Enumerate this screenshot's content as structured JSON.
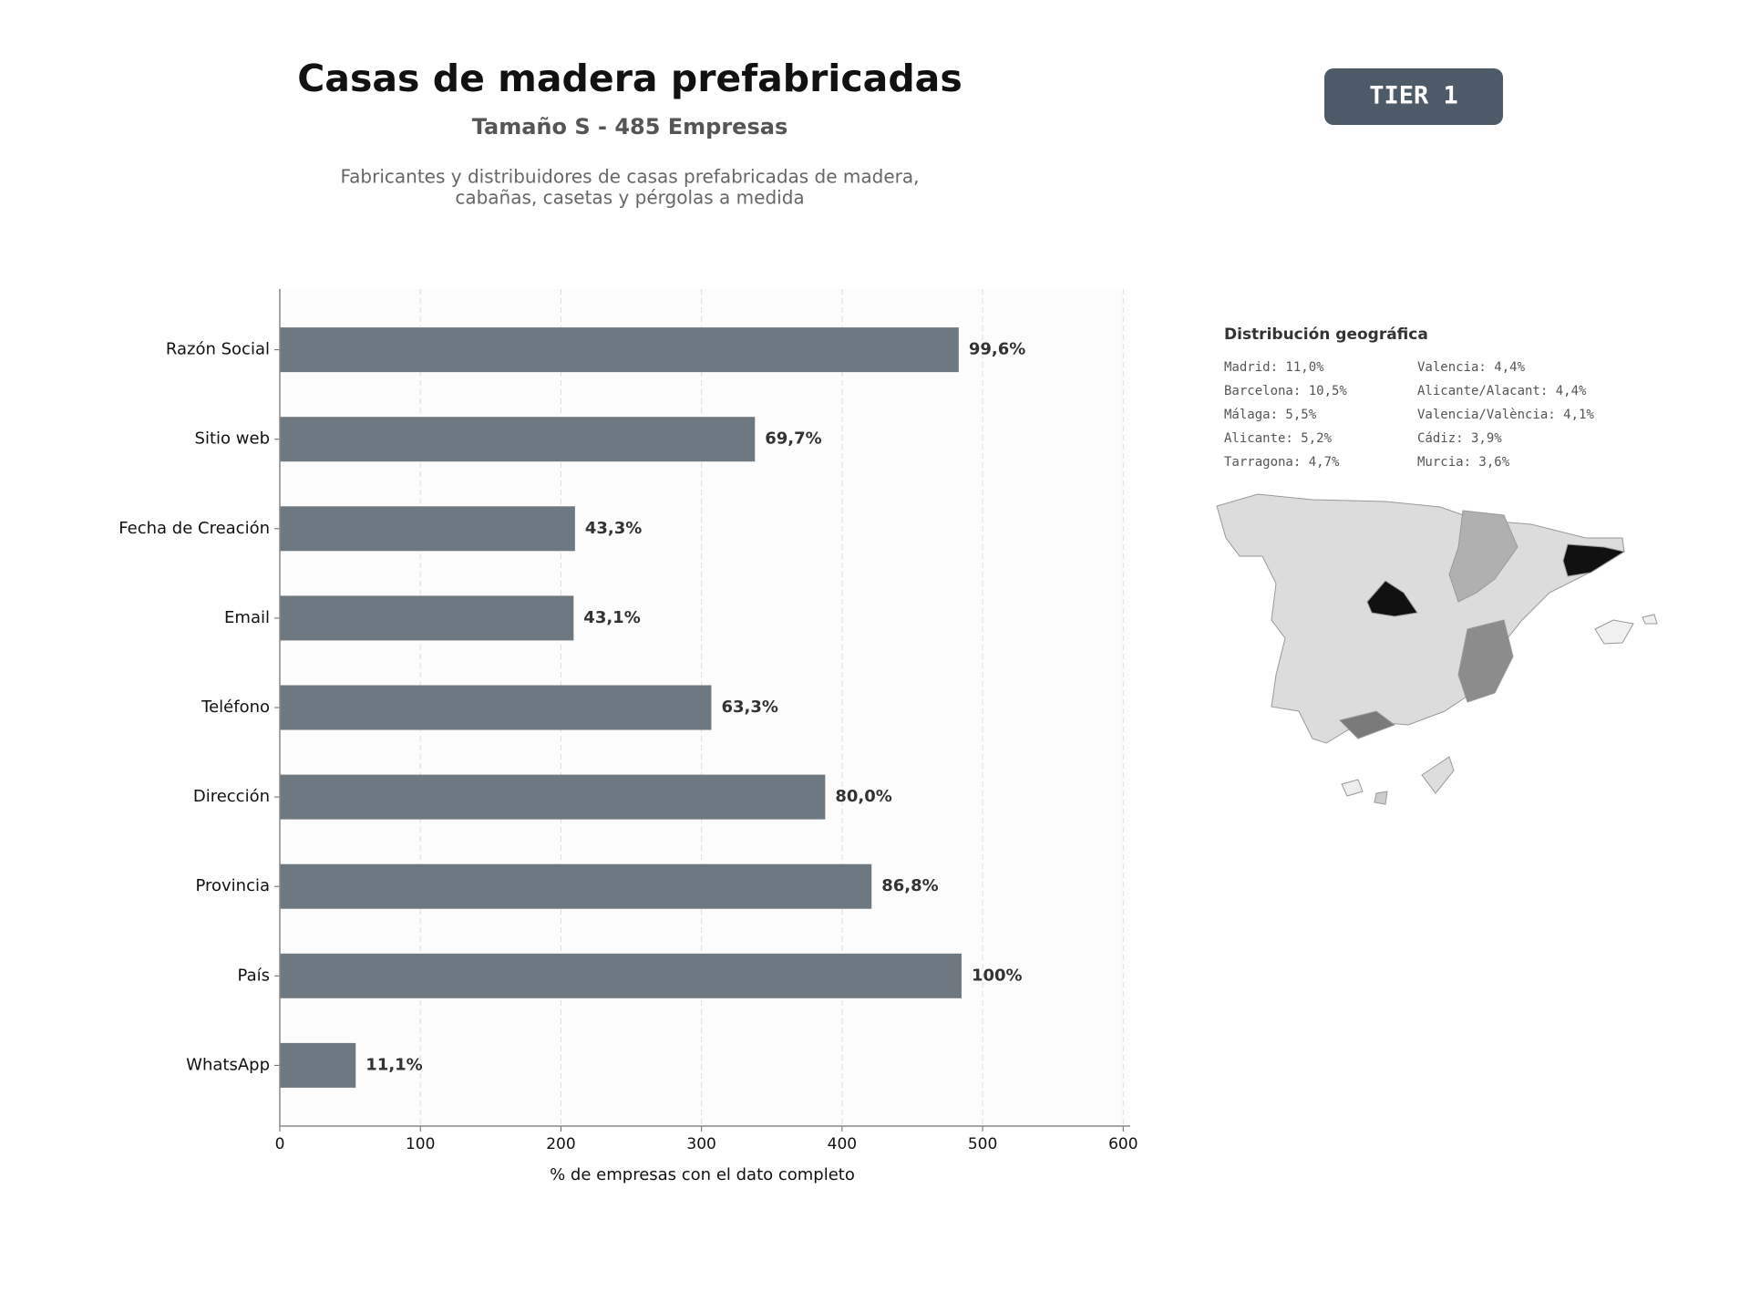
{
  "header": {
    "title": "Casas de madera prefabricadas",
    "subtitle": "Tamaño S - 485 Empresas",
    "description": [
      "Fabricantes y distribuidores de casas prefabricadas de madera,",
      "cabañas, casetas y pérgolas a medida"
    ],
    "badge": "TIER 1"
  },
  "chart_data": {
    "type": "barh",
    "categories": [
      "Razón Social",
      "Sitio web",
      "Fecha de Creación",
      "Email",
      "Teléfono",
      "Dirección",
      "Provincia",
      "País",
      "WhatsApp"
    ],
    "values": [
      483,
      338,
      210,
      209,
      307,
      388,
      421,
      485,
      54
    ],
    "value_labels": [
      "99,6%",
      "69,7%",
      "43,3%",
      "43,1%",
      "63,3%",
      "80,0%",
      "86,8%",
      "100%",
      "11,1%"
    ],
    "color": "#6e7881",
    "xlabel": "% de empresas con el dato completo",
    "xlim": [
      0,
      605
    ],
    "xticks": [
      0,
      100,
      200,
      300,
      400,
      500,
      600
    ],
    "grid": true
  },
  "geo": {
    "title": "Distribución geográfica",
    "items": [
      "Madrid: 11,0%",
      "Barcelona: 10,5%",
      "Málaga: 5,5%",
      "Alicante: 5,2%",
      "Tarragona: 4,7%",
      "Valencia: 4,4%",
      "Alicante/Alacant: 4,4%",
      "Valencia/València: 4,1%",
      "Cádiz: 3,9%",
      "Murcia: 3,6%"
    ]
  }
}
